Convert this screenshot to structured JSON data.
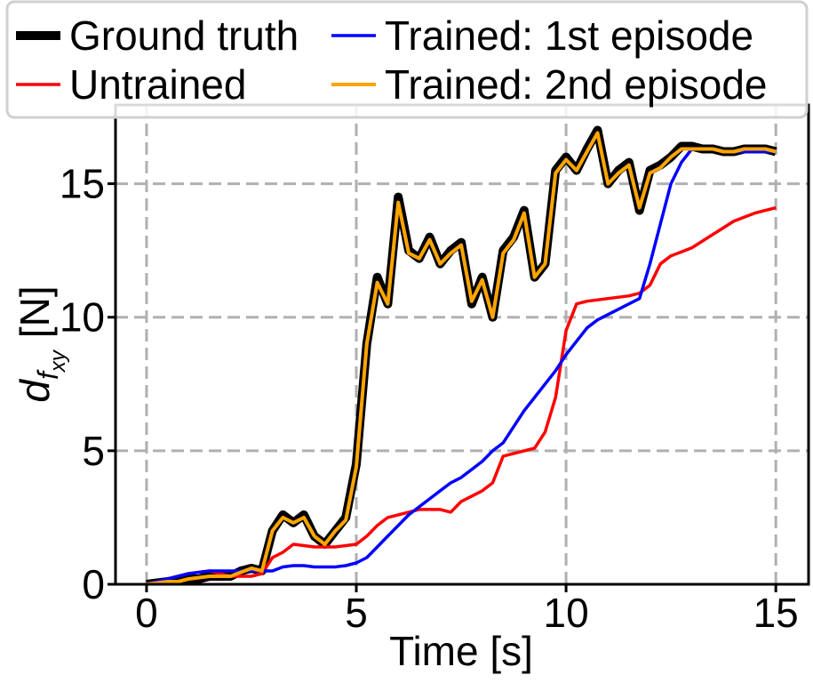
{
  "chart_data": {
    "type": "line",
    "xlabel": "Time [s]",
    "ylabel": {
      "symbol": "d",
      "subscript": "f",
      "subsubscript": "xy",
      "unit": "[N]"
    },
    "x": [
      0,
      0.25,
      0.5,
      0.75,
      1,
      1.25,
      1.5,
      1.75,
      2,
      2.25,
      2.5,
      2.75,
      3,
      3.25,
      3.5,
      3.75,
      4,
      4.25,
      4.5,
      4.75,
      5,
      5.25,
      5.5,
      5.75,
      6,
      6.25,
      6.5,
      6.75,
      7,
      7.25,
      7.5,
      7.75,
      8,
      8.25,
      8.5,
      8.75,
      9,
      9.25,
      9.5,
      9.75,
      10,
      10.25,
      10.5,
      10.75,
      11,
      11.25,
      11.5,
      11.75,
      12,
      12.25,
      12.5,
      12.75,
      13,
      13.25,
      13.5,
      13.75,
      14,
      14.25,
      14.5,
      14.75,
      15
    ],
    "series": [
      {
        "name": "Ground truth",
        "color": "#000000",
        "width": 10,
        "values": [
          0,
          0.05,
          0.1,
          0.15,
          0.2,
          0.2,
          0.3,
          0.3,
          0.3,
          0.5,
          0.6,
          0.5,
          2.0,
          2.6,
          2.3,
          2.6,
          1.8,
          1.5,
          2.0,
          2.5,
          4.5,
          9.0,
          11.5,
          10.5,
          14.5,
          12.5,
          12.2,
          13.0,
          12.0,
          12.5,
          12.8,
          10.5,
          11.5,
          10.0,
          12.5,
          13.0,
          14.0,
          11.5,
          12.0,
          15.5,
          16.0,
          15.5,
          16.3,
          17.0,
          15.0,
          15.5,
          15.8,
          14.0,
          15.5,
          15.7,
          16.0,
          16.4,
          16.4,
          16.3,
          16.3,
          16.2,
          16.2,
          16.3,
          16.3,
          16.3,
          16.2
        ]
      },
      {
        "name": "Untrained",
        "color": "#ff0000",
        "width": 3.5,
        "values": [
          0,
          0.1,
          0.2,
          0.3,
          0.4,
          0.45,
          0.5,
          0.4,
          0.3,
          0.3,
          0.3,
          0.4,
          1.0,
          1.2,
          1.5,
          1.45,
          1.4,
          1.4,
          1.4,
          1.45,
          1.5,
          1.8,
          2.2,
          2.5,
          2.6,
          2.7,
          2.8,
          2.8,
          2.8,
          2.7,
          3.1,
          3.3,
          3.5,
          3.8,
          4.8,
          4.9,
          5.0,
          5.1,
          5.7,
          7.0,
          9.5,
          10.5,
          10.6,
          10.65,
          10.7,
          10.75,
          10.8,
          10.9,
          11.2,
          12.0,
          12.3,
          12.45,
          12.6,
          12.85,
          13.1,
          13.35,
          13.6,
          13.75,
          13.9,
          14.0,
          14.1
        ]
      },
      {
        "name": "Trained: 1st episode",
        "color": "#0000ff",
        "width": 3.5,
        "values": [
          0,
          0.1,
          0.2,
          0.3,
          0.4,
          0.45,
          0.5,
          0.5,
          0.5,
          0.5,
          0.5,
          0.5,
          0.5,
          0.65,
          0.7,
          0.7,
          0.65,
          0.65,
          0.65,
          0.7,
          0.8,
          1.0,
          1.4,
          1.8,
          2.2,
          2.6,
          2.9,
          3.2,
          3.5,
          3.8,
          4.0,
          4.3,
          4.6,
          5.0,
          5.3,
          5.9,
          6.5,
          7.0,
          7.5,
          8.0,
          8.6,
          9.1,
          9.6,
          9.9,
          10.1,
          10.3,
          10.5,
          10.7,
          12.0,
          13.5,
          15.0,
          15.8,
          16.3,
          16.3,
          16.3,
          16.2,
          16.2,
          16.2,
          16.2,
          16.2,
          16.2
        ]
      },
      {
        "name": "Trained: 2nd episode",
        "color": "#ffa500",
        "width": 4,
        "values": [
          0,
          0.05,
          0.1,
          0.1,
          0.2,
          0.25,
          0.3,
          0.3,
          0.3,
          0.45,
          0.6,
          0.5,
          2.0,
          2.5,
          2.3,
          2.5,
          1.8,
          1.5,
          2.0,
          2.4,
          4.4,
          9.0,
          11.3,
          10.5,
          14.3,
          12.4,
          12.2,
          12.9,
          12.0,
          12.4,
          12.7,
          10.6,
          11.4,
          10.0,
          12.4,
          12.9,
          13.9,
          11.5,
          12.0,
          15.4,
          15.9,
          15.5,
          16.2,
          16.9,
          15.0,
          15.4,
          15.7,
          14.1,
          15.4,
          15.6,
          16.0,
          16.3,
          16.3,
          16.3,
          16.3,
          16.2,
          16.2,
          16.3,
          16.3,
          16.3,
          16.2
        ]
      }
    ],
    "xlim": [
      -0.74,
      15.78
    ],
    "ylim": [
      0,
      17.95
    ],
    "xticks": [
      0,
      5,
      10,
      15
    ],
    "yticks": [
      0,
      5,
      10,
      15
    ],
    "grid": true,
    "legend": "top",
    "legend_columns": 2
  }
}
